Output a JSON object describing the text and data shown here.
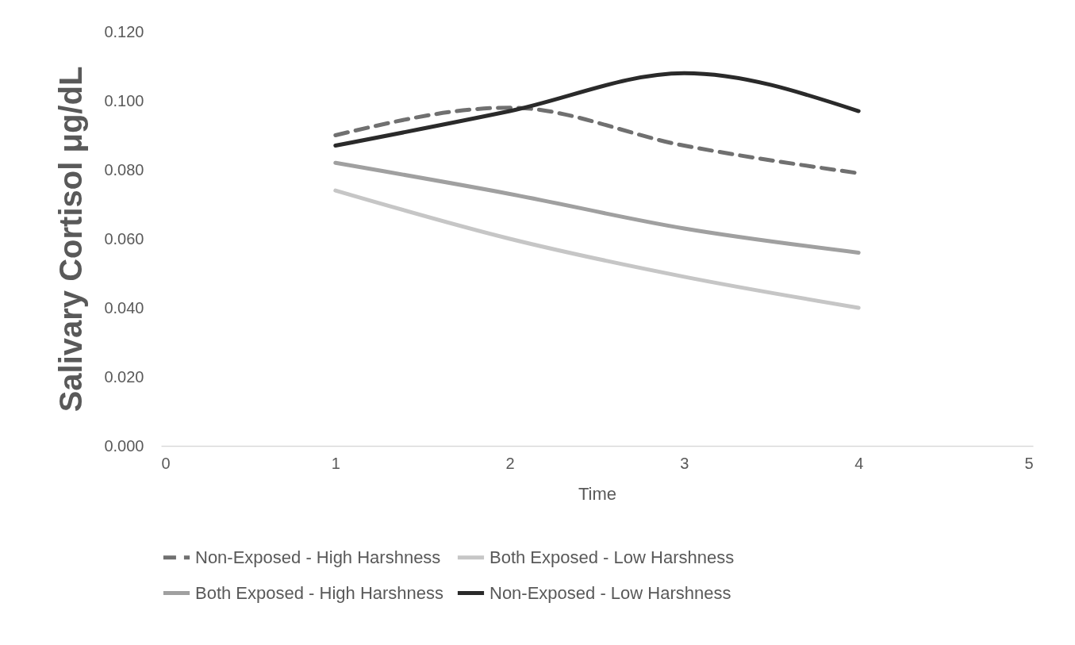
{
  "chart_data": {
    "type": "line",
    "xlabel": "Time",
    "ylabel": "Salivary Cortisol μg/dL",
    "x": [
      1,
      2,
      3,
      4
    ],
    "xlim": [
      0,
      5
    ],
    "xticks": [
      0,
      1,
      2,
      3,
      4,
      5
    ],
    "ylim": [
      0,
      0.12
    ],
    "yticks": [
      {
        "value": 0,
        "label": "0.000"
      },
      {
        "value": 0.02,
        "label": "0.020"
      },
      {
        "value": 0.04,
        "label": "0.040"
      },
      {
        "value": 0.06,
        "label": "0.060"
      },
      {
        "value": 0.08,
        "label": "0.080"
      },
      {
        "value": 0.1,
        "label": "0.100"
      },
      {
        "value": 0.12,
        "label": "0.120"
      }
    ],
    "grid": false,
    "legend": "bottom",
    "marker": "none",
    "series": [
      {
        "name": "Non-Exposed - High Harshness",
        "color": "#707070",
        "line_style": "dashed",
        "values": [
          0.09,
          0.098,
          0.087,
          0.079
        ]
      },
      {
        "name": "Both Exposed - Low Harshness",
        "color": "#c6c6c6",
        "line_style": "solid",
        "values": [
          0.074,
          0.06,
          0.049,
          0.04
        ]
      },
      {
        "name": "Both Exposed - High Harshness",
        "color": "#a0a0a0",
        "line_style": "solid",
        "values": [
          0.082,
          0.073,
          0.063,
          0.056
        ]
      },
      {
        "name": "Non-Exposed - Low Harshness",
        "color": "#2a2a2a",
        "line_style": "solid",
        "values": [
          0.087,
          0.097,
          0.108,
          0.097
        ]
      }
    ]
  }
}
